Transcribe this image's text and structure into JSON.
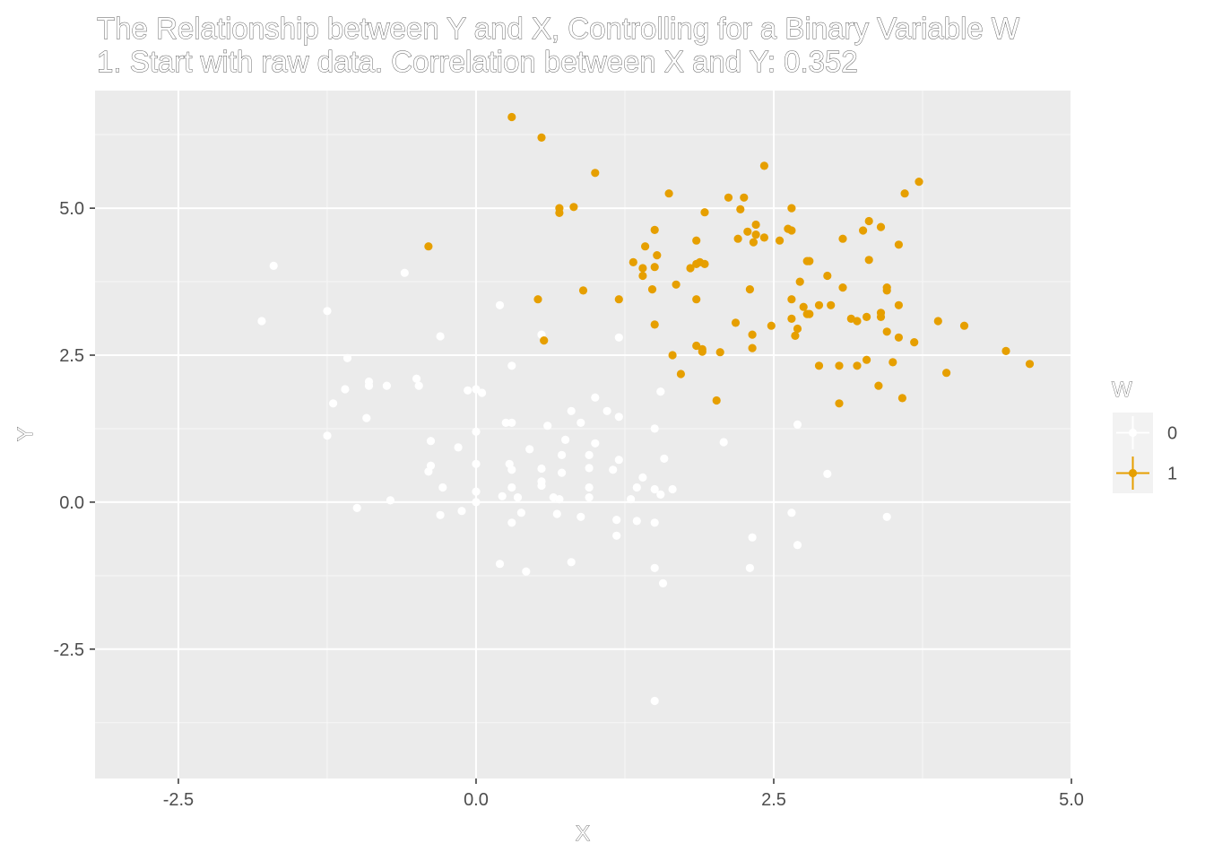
{
  "chart_data": {
    "type": "scatter",
    "title": "The Relationship between Y and X, Controlling for a Binary Variable W",
    "subtitle": "1. Start with raw data. Correlation between X and Y: 0.352",
    "xlabel": "X",
    "ylabel": "Y",
    "xlim": [
      -3.2,
      5.0
    ],
    "ylim": [
      -4.7,
      7.0
    ],
    "x_ticks": [
      -2.5,
      0.0,
      2.5,
      5.0
    ],
    "x_tick_labels": [
      "-2.5",
      "0.0",
      "2.5",
      "5.0"
    ],
    "y_ticks": [
      -2.5,
      0.0,
      2.5,
      5.0
    ],
    "y_tick_labels": [
      "-2.5",
      "0.0",
      "2.5",
      "5.0"
    ],
    "grid": true,
    "panel_color": "#ebebeb",
    "legend": {
      "title": "W",
      "position": "right",
      "entries": [
        "0",
        "1"
      ]
    },
    "series": [
      {
        "name": "0",
        "color": "#ffffff",
        "points": [
          [
            -1.7,
            4.02
          ],
          [
            -1.8,
            3.08
          ],
          [
            -1.25,
            3.25
          ],
          [
            -0.6,
            3.9
          ],
          [
            0.2,
            3.35
          ],
          [
            0.55,
            2.85
          ],
          [
            -0.3,
            2.82
          ],
          [
            1.2,
            2.8
          ],
          [
            -1.08,
            2.45
          ],
          [
            0.3,
            2.32
          ],
          [
            -1.1,
            1.92
          ],
          [
            -0.9,
            2.05
          ],
          [
            -0.9,
            1.98
          ],
          [
            -0.75,
            1.98
          ],
          [
            -0.5,
            2.1
          ],
          [
            -0.48,
            1.98
          ],
          [
            -0.07,
            1.9
          ],
          [
            0.0,
            1.92
          ],
          [
            0.05,
            1.86
          ],
          [
            1.55,
            1.88
          ],
          [
            1.0,
            1.78
          ],
          [
            -1.2,
            1.68
          ],
          [
            -0.92,
            1.43
          ],
          [
            0.8,
            1.55
          ],
          [
            1.1,
            1.55
          ],
          [
            1.2,
            1.45
          ],
          [
            0.25,
            1.35
          ],
          [
            0.3,
            1.35
          ],
          [
            0.6,
            1.3
          ],
          [
            0.88,
            1.35
          ],
          [
            1.5,
            1.25
          ],
          [
            2.7,
            1.32
          ],
          [
            -1.25,
            1.13
          ],
          [
            0.0,
            1.2
          ],
          [
            0.75,
            1.06
          ],
          [
            -0.38,
            1.04
          ],
          [
            1.0,
            1.0
          ],
          [
            2.08,
            1.02
          ],
          [
            -0.15,
            0.93
          ],
          [
            0.45,
            0.9
          ],
          [
            0.72,
            0.8
          ],
          [
            0.95,
            0.8
          ],
          [
            1.2,
            0.72
          ],
          [
            1.58,
            0.74
          ],
          [
            0.28,
            0.65
          ],
          [
            -0.38,
            0.62
          ],
          [
            0.0,
            0.65
          ],
          [
            -0.4,
            0.52
          ],
          [
            0.3,
            0.55
          ],
          [
            0.55,
            0.57
          ],
          [
            0.72,
            0.5
          ],
          [
            0.95,
            0.58
          ],
          [
            1.15,
            0.55
          ],
          [
            1.4,
            0.42
          ],
          [
            2.95,
            0.48
          ],
          [
            -0.28,
            0.25
          ],
          [
            0.3,
            0.25
          ],
          [
            0.55,
            0.28
          ],
          [
            0.55,
            0.35
          ],
          [
            0.95,
            0.25
          ],
          [
            1.35,
            0.25
          ],
          [
            1.5,
            0.22
          ],
          [
            1.65,
            0.22
          ],
          [
            0.0,
            0.18
          ],
          [
            0.22,
            0.1
          ],
          [
            0.35,
            0.08
          ],
          [
            0.65,
            0.08
          ],
          [
            0.7,
            0.05
          ],
          [
            0.95,
            0.08
          ],
          [
            1.3,
            0.05
          ],
          [
            1.55,
            0.13
          ],
          [
            -0.72,
            0.03
          ],
          [
            0.0,
            0.0
          ],
          [
            -1.0,
            -0.1
          ],
          [
            -0.12,
            -0.15
          ],
          [
            0.38,
            -0.18
          ],
          [
            0.68,
            -0.2
          ],
          [
            2.65,
            -0.18
          ],
          [
            -0.3,
            -0.22
          ],
          [
            0.88,
            -0.25
          ],
          [
            1.18,
            -0.3
          ],
          [
            1.35,
            -0.32
          ],
          [
            0.3,
            -0.35
          ],
          [
            1.5,
            -0.35
          ],
          [
            3.45,
            -0.25
          ],
          [
            1.18,
            -0.57
          ],
          [
            2.32,
            -0.6
          ],
          [
            2.7,
            -0.73
          ],
          [
            0.8,
            -1.02
          ],
          [
            0.2,
            -1.05
          ],
          [
            2.3,
            -1.12
          ],
          [
            1.5,
            -1.12
          ],
          [
            0.42,
            -1.18
          ],
          [
            1.57,
            -1.38
          ],
          [
            1.5,
            -3.38
          ]
        ]
      },
      {
        "name": "1",
        "color": "#e69f00",
        "points": [
          [
            0.3,
            6.55
          ],
          [
            0.55,
            6.2
          ],
          [
            1.0,
            5.6
          ],
          [
            2.42,
            5.72
          ],
          [
            1.62,
            5.25
          ],
          [
            2.12,
            5.18
          ],
          [
            2.25,
            5.18
          ],
          [
            3.72,
            5.45
          ],
          [
            3.6,
            5.25
          ],
          [
            0.7,
            5.0
          ],
          [
            0.82,
            5.02
          ],
          [
            0.7,
            4.92
          ],
          [
            2.22,
            4.98
          ],
          [
            1.92,
            4.93
          ],
          [
            2.65,
            5.0
          ],
          [
            1.5,
            4.63
          ],
          [
            2.35,
            4.72
          ],
          [
            2.62,
            4.65
          ],
          [
            3.3,
            4.78
          ],
          [
            3.4,
            4.68
          ],
          [
            2.65,
            4.62
          ],
          [
            2.28,
            4.6
          ],
          [
            2.35,
            4.55
          ],
          [
            2.42,
            4.5
          ],
          [
            2.2,
            4.48
          ],
          [
            1.85,
            4.45
          ],
          [
            2.55,
            4.45
          ],
          [
            3.08,
            4.48
          ],
          [
            3.25,
            4.62
          ],
          [
            2.33,
            4.42
          ],
          [
            -0.4,
            4.35
          ],
          [
            1.42,
            4.35
          ],
          [
            3.55,
            4.38
          ],
          [
            1.52,
            4.2
          ],
          [
            2.8,
            4.1
          ],
          [
            1.88,
            4.08
          ],
          [
            1.32,
            4.08
          ],
          [
            1.4,
            3.98
          ],
          [
            1.5,
            4.0
          ],
          [
            1.85,
            4.05
          ],
          [
            1.8,
            3.98
          ],
          [
            1.92,
            4.05
          ],
          [
            2.78,
            4.1
          ],
          [
            3.3,
            4.12
          ],
          [
            1.4,
            3.85
          ],
          [
            2.95,
            3.85
          ],
          [
            2.72,
            3.75
          ],
          [
            1.68,
            3.7
          ],
          [
            1.48,
            3.62
          ],
          [
            0.9,
            3.6
          ],
          [
            2.3,
            3.62
          ],
          [
            3.08,
            3.65
          ],
          [
            3.45,
            3.6
          ],
          [
            3.45,
            3.65
          ],
          [
            0.52,
            3.45
          ],
          [
            1.2,
            3.45
          ],
          [
            1.85,
            3.45
          ],
          [
            2.65,
            3.45
          ],
          [
            2.75,
            3.32
          ],
          [
            2.88,
            3.35
          ],
          [
            2.98,
            3.35
          ],
          [
            3.55,
            3.35
          ],
          [
            2.78,
            3.2
          ],
          [
            2.8,
            3.2
          ],
          [
            2.65,
            3.12
          ],
          [
            3.15,
            3.12
          ],
          [
            3.2,
            3.08
          ],
          [
            3.28,
            3.15
          ],
          [
            3.4,
            3.15
          ],
          [
            3.4,
            3.22
          ],
          [
            3.88,
            3.08
          ],
          [
            1.5,
            3.02
          ],
          [
            2.18,
            3.05
          ],
          [
            2.48,
            3.0
          ],
          [
            4.1,
            3.0
          ],
          [
            2.7,
            2.95
          ],
          [
            2.68,
            2.83
          ],
          [
            3.45,
            2.9
          ],
          [
            2.32,
            2.85
          ],
          [
            3.55,
            2.8
          ],
          [
            3.68,
            2.72
          ],
          [
            0.57,
            2.75
          ],
          [
            1.85,
            2.66
          ],
          [
            2.32,
            2.62
          ],
          [
            1.9,
            2.6
          ],
          [
            1.9,
            2.56
          ],
          [
            2.05,
            2.55
          ],
          [
            1.65,
            2.5
          ],
          [
            4.45,
            2.57
          ],
          [
            3.28,
            2.42
          ],
          [
            3.5,
            2.38
          ],
          [
            2.88,
            2.32
          ],
          [
            3.05,
            2.32
          ],
          [
            3.2,
            2.32
          ],
          [
            4.65,
            2.35
          ],
          [
            1.72,
            2.18
          ],
          [
            3.95,
            2.2
          ],
          [
            3.38,
            1.98
          ],
          [
            2.02,
            1.73
          ],
          [
            3.58,
            1.77
          ],
          [
            3.05,
            1.68
          ]
        ]
      }
    ]
  }
}
